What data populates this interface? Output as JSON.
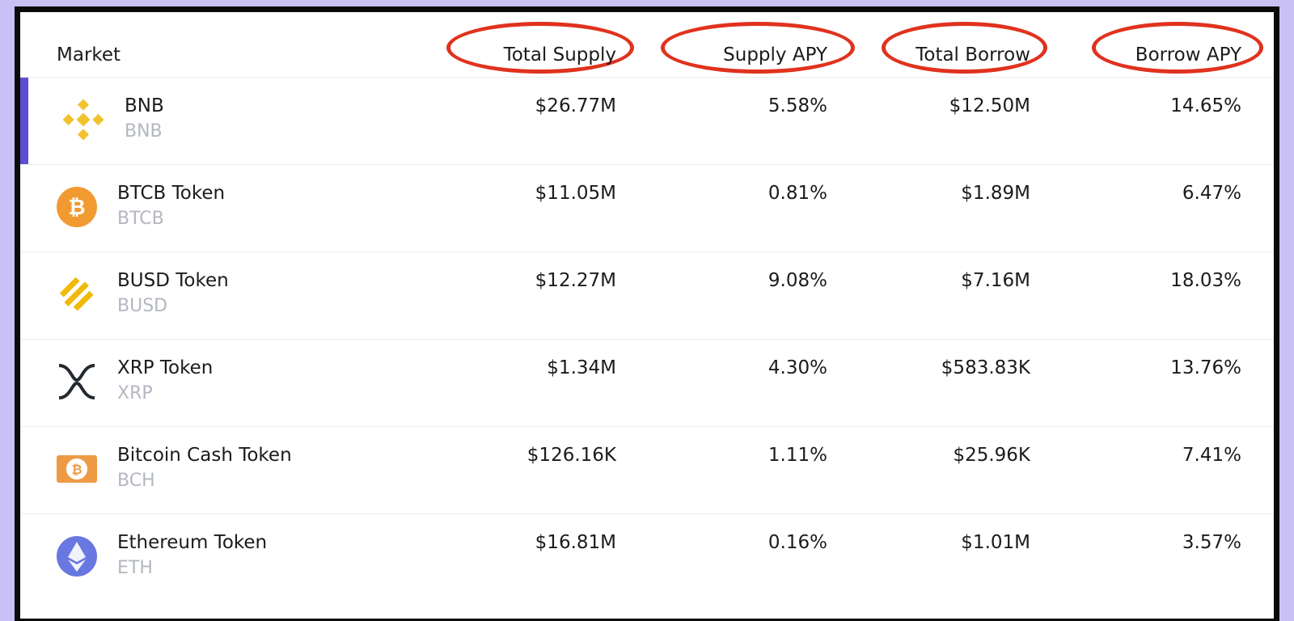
{
  "table": {
    "headers": [
      "Market",
      "Total Supply",
      "Supply APY",
      "Total Borrow",
      "Borrow APY"
    ],
    "rows": [
      {
        "name": "BNB",
        "symbol": "BNB",
        "total_supply": "$26.77M",
        "supply_apy": "5.58%",
        "total_borrow": "$12.50M",
        "borrow_apy": "14.65%"
      },
      {
        "name": "BTCB Token",
        "symbol": "BTCB",
        "total_supply": "$11.05M",
        "supply_apy": "0.81%",
        "total_borrow": "$1.89M",
        "borrow_apy": "6.47%"
      },
      {
        "name": "BUSD Token",
        "symbol": "BUSD",
        "total_supply": "$12.27M",
        "supply_apy": "9.08%",
        "total_borrow": "$7.16M",
        "borrow_apy": "18.03%"
      },
      {
        "name": "XRP Token",
        "symbol": "XRP",
        "total_supply": "$1.34M",
        "supply_apy": "4.30%",
        "total_borrow": "$583.83K",
        "borrow_apy": "13.76%"
      },
      {
        "name": "Bitcoin Cash Token",
        "symbol": "BCH",
        "total_supply": "$126.16K",
        "supply_apy": "1.11%",
        "total_borrow": "$25.96K",
        "borrow_apy": "7.41%"
      },
      {
        "name": "Ethereum Token",
        "symbol": "ETH",
        "total_supply": "$16.81M",
        "supply_apy": "0.16%",
        "total_borrow": "$1.01M",
        "borrow_apy": "3.57%"
      }
    ]
  }
}
